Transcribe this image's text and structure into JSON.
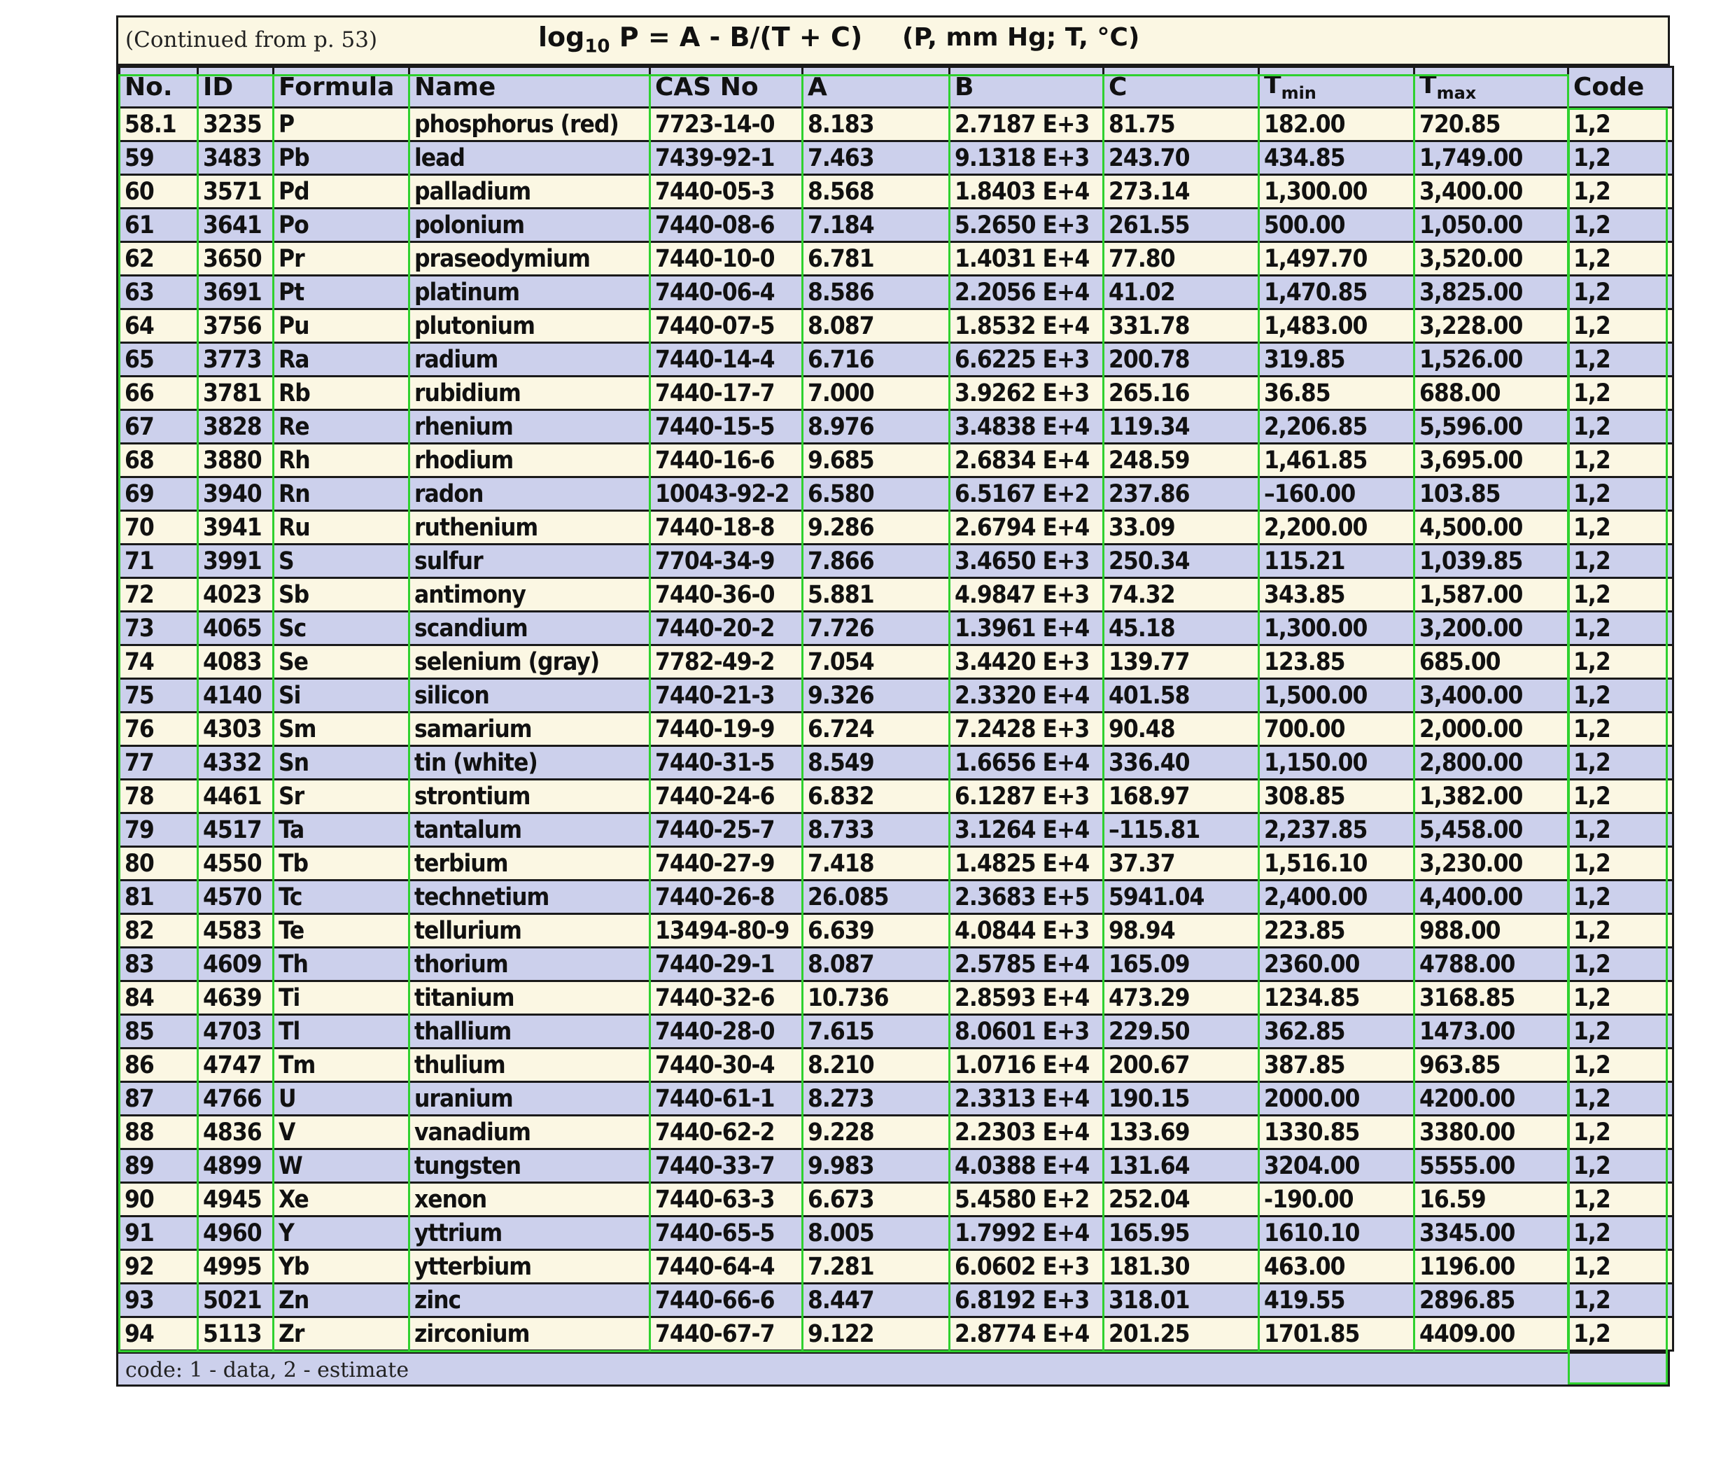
{
  "header": {
    "continued": "(Continued from p. 53)",
    "formula_prefix": "log",
    "formula_sub": "10",
    "formula_rest": " P = A - B/(T + C)",
    "units": "(P, mm Hg; T, °C)"
  },
  "table": {
    "columns": [
      "No.",
      "ID",
      "Formula",
      "Name",
      "CAS No",
      "A",
      "B",
      "C",
      "T",
      "T",
      "Code"
    ],
    "tmin_sub": "min",
    "tmax_sub": "max",
    "rows": [
      [
        "58.1",
        "3235",
        "P",
        "phosphorus (red)",
        "7723-14-0",
        "8.183",
        "2.7187 E+3",
        "81.75",
        "182.00",
        "720.85",
        "1,2"
      ],
      [
        "59",
        "3483",
        "Pb",
        "lead",
        "7439-92-1",
        "7.463",
        "9.1318 E+3",
        "243.70",
        "434.85",
        "1,749.00",
        "1,2"
      ],
      [
        "60",
        "3571",
        "Pd",
        "palladium",
        "7440-05-3",
        "8.568",
        "1.8403 E+4",
        "273.14",
        "1,300.00",
        "3,400.00",
        "1,2"
      ],
      [
        "61",
        "3641",
        "Po",
        "polonium",
        "7440-08-6",
        "7.184",
        "5.2650 E+3",
        "261.55",
        "500.00",
        "1,050.00",
        "1,2"
      ],
      [
        "62",
        "3650",
        "Pr",
        "praseodymium",
        "7440-10-0",
        "6.781",
        "1.4031 E+4",
        "77.80",
        "1,497.70",
        "3,520.00",
        "1,2"
      ],
      [
        "63",
        "3691",
        "Pt",
        "platinum",
        "7440-06-4",
        "8.586",
        "2.2056 E+4",
        "41.02",
        "1,470.85",
        "3,825.00",
        "1,2"
      ],
      [
        "64",
        "3756",
        "Pu",
        "plutonium",
        "7440-07-5",
        "8.087",
        "1.8532 E+4",
        "331.78",
        "1,483.00",
        "3,228.00",
        "1,2"
      ],
      [
        "65",
        "3773",
        "Ra",
        "radium",
        "7440-14-4",
        "6.716",
        "6.6225 E+3",
        "200.78",
        "319.85",
        "1,526.00",
        "1,2"
      ],
      [
        "66",
        "3781",
        "Rb",
        "rubidium",
        "7440-17-7",
        "7.000",
        "3.9262 E+3",
        "265.16",
        "36.85",
        "688.00",
        "1,2"
      ],
      [
        "67",
        "3828",
        "Re",
        "rhenium",
        "7440-15-5",
        "8.976",
        "3.4838 E+4",
        "119.34",
        "2,206.85",
        "5,596.00",
        "1,2"
      ],
      [
        "68",
        "3880",
        "Rh",
        "rhodium",
        "7440-16-6",
        "9.685",
        "2.6834 E+4",
        "248.59",
        "1,461.85",
        "3,695.00",
        "1,2"
      ],
      [
        "69",
        "3940",
        "Rn",
        "radon",
        "10043-92-2",
        "6.580",
        "6.5167 E+2",
        "237.86",
        "–160.00",
        "103.85",
        "1,2"
      ],
      [
        "70",
        "3941",
        "Ru",
        "ruthenium",
        "7440-18-8",
        "9.286",
        "2.6794 E+4",
        "33.09",
        "2,200.00",
        "4,500.00",
        "1,2"
      ],
      [
        "71",
        "3991",
        "S",
        "sulfur",
        "7704-34-9",
        "7.866",
        "3.4650 E+3",
        "250.34",
        "115.21",
        "1,039.85",
        "1,2"
      ],
      [
        "72",
        "4023",
        "Sb",
        "antimony",
        "7440-36-0",
        "5.881",
        "4.9847 E+3",
        "74.32",
        "343.85",
        "1,587.00",
        "1,2"
      ],
      [
        "73",
        "4065",
        "Sc",
        "scandium",
        "7440-20-2",
        "7.726",
        "1.3961 E+4",
        "45.18",
        "1,300.00",
        "3,200.00",
        "1,2"
      ],
      [
        "74",
        "4083",
        "Se",
        "selenium (gray)",
        "7782-49-2",
        "7.054",
        "3.4420 E+3",
        "139.77",
        "123.85",
        "685.00",
        "1,2"
      ],
      [
        "75",
        "4140",
        "Si",
        "silicon",
        "7440-21-3",
        "9.326",
        "2.3320 E+4",
        "401.58",
        "1,500.00",
        "3,400.00",
        "1,2"
      ],
      [
        "76",
        "4303",
        "Sm",
        "samarium",
        "7440-19-9",
        "6.724",
        "7.2428 E+3",
        "90.48",
        "700.00",
        "2,000.00",
        "1,2"
      ],
      [
        "77",
        "4332",
        "Sn",
        "tin (white)",
        "7440-31-5",
        "8.549",
        "1.6656 E+4",
        "336.40",
        "1,150.00",
        "2,800.00",
        "1,2"
      ],
      [
        "78",
        "4461",
        "Sr",
        "strontium",
        "7440-24-6",
        "6.832",
        "6.1287 E+3",
        "168.97",
        "308.85",
        "1,382.00",
        "1,2"
      ],
      [
        "79",
        "4517",
        "Ta",
        "tantalum",
        "7440-25-7",
        "8.733",
        "3.1264 E+4",
        "–115.81",
        "2,237.85",
        "5,458.00",
        "1,2"
      ],
      [
        "80",
        "4550",
        "Tb",
        "terbium",
        "7440-27-9",
        "7.418",
        "1.4825 E+4",
        "37.37",
        "1,516.10",
        "3,230.00",
        "1,2"
      ],
      [
        "81",
        "4570",
        "Tc",
        "technetium",
        "7440-26-8",
        "26.085",
        "2.3683 E+5",
        "5941.04",
        "2,400.00",
        "4,400.00",
        "1,2"
      ],
      [
        "82",
        "4583",
        "Te",
        "tellurium",
        "13494-80-9",
        "6.639",
        "4.0844 E+3",
        "98.94",
        "223.85",
        "988.00",
        "1,2"
      ],
      [
        "83",
        "4609",
        "Th",
        "thorium",
        "7440-29-1",
        "8.087",
        "2.5785 E+4",
        "165.09",
        "2360.00",
        "4788.00",
        "1,2"
      ],
      [
        "84",
        "4639",
        "Ti",
        "titanium",
        "7440-32-6",
        "10.736",
        "2.8593 E+4",
        "473.29",
        "1234.85",
        "3168.85",
        "1,2"
      ],
      [
        "85",
        "4703",
        "Tl",
        "thallium",
        "7440-28-0",
        "7.615",
        "8.0601 E+3",
        "229.50",
        "362.85",
        "1473.00",
        "1,2"
      ],
      [
        "86",
        "4747",
        "Tm",
        "thulium",
        "7440-30-4",
        "8.210",
        "1.0716 E+4",
        "200.67",
        "387.85",
        "963.85",
        "1,2"
      ],
      [
        "87",
        "4766",
        "U",
        "uranium",
        "7440-61-1",
        "8.273",
        "2.3313 E+4",
        "190.15",
        "2000.00",
        "4200.00",
        "1,2"
      ],
      [
        "88",
        "4836",
        "V",
        "vanadium",
        "7440-62-2",
        "9.228",
        "2.2303 E+4",
        "133.69",
        "1330.85",
        "3380.00",
        "1,2"
      ],
      [
        "89",
        "4899",
        "W",
        "tungsten",
        "7440-33-7",
        "9.983",
        "4.0388 E+4",
        "131.64",
        "3204.00",
        "5555.00",
        "1,2"
      ],
      [
        "90",
        "4945",
        "Xe",
        "xenon",
        "7440-63-3",
        "6.673",
        "5.4580 E+2",
        "252.04",
        "-190.00",
        "16.59",
        "1,2"
      ],
      [
        "91",
        "4960",
        "Y",
        "yttrium",
        "7440-65-5",
        "8.005",
        "1.7992 E+4",
        "165.95",
        "1610.10",
        "3345.00",
        "1,2"
      ],
      [
        "92",
        "4995",
        "Yb",
        "ytterbium",
        "7440-64-4",
        "7.281",
        "6.0602 E+3",
        "181.30",
        "463.00",
        "1196.00",
        "1,2"
      ],
      [
        "93",
        "5021",
        "Zn",
        "zinc",
        "7440-66-6",
        "8.447",
        "6.8192 E+3",
        "318.01",
        "419.55",
        "2896.85",
        "1,2"
      ],
      [
        "94",
        "5113",
        "Zr",
        "zirconium",
        "7440-67-7",
        "9.122",
        "2.8774 E+4",
        "201.25",
        "1701.85",
        "4409.00",
        "1,2"
      ]
    ]
  },
  "footer": {
    "note": "code: 1 - data, 2 - estimate"
  },
  "colors": {
    "cream": "#fbf7e3",
    "lavender": "#ccd0ec",
    "grid": "#1a1a1a",
    "highlight": "#2fd12f"
  }
}
